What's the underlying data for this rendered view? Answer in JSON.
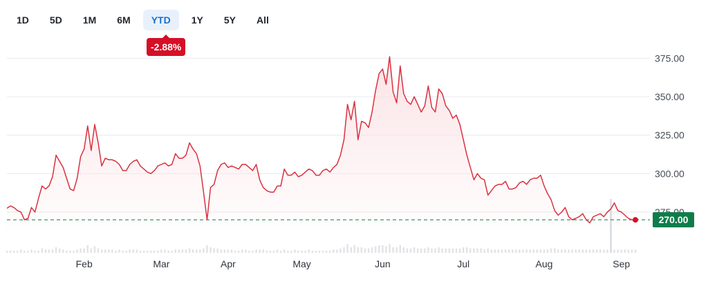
{
  "range_tabs": [
    {
      "label": "1D",
      "active": false
    },
    {
      "label": "5D",
      "active": false
    },
    {
      "label": "1M",
      "active": false
    },
    {
      "label": "6M",
      "active": false
    },
    {
      "label": "YTD",
      "active": true
    },
    {
      "label": "1Y",
      "active": false
    },
    {
      "label": "5Y",
      "active": false
    },
    {
      "label": "All",
      "active": false
    }
  ],
  "change_badge": "-2.88%",
  "colors": {
    "line": "#d8313f",
    "fill": "#fbe3e6",
    "baseline": "#1f8a5b",
    "price_tag": "#0f7d4a",
    "badge": "#d50f26",
    "active_tab": "#1a6fd1",
    "grid": "#e6e8eb",
    "volume": "#e1e3e6"
  },
  "chart_data": {
    "type": "line",
    "x_labels": [
      "Feb",
      "Mar",
      "Apr",
      "May",
      "Jun",
      "Jul",
      "Aug",
      "Sep"
    ],
    "y_ticks": [
      "275.00",
      "300.00",
      "325.00",
      "350.00",
      "375.00"
    ],
    "ylim": [
      262,
      385
    ],
    "current_price_label": "270.00",
    "baseline_value": 270,
    "series": [
      {
        "values": [
          277.5,
          279,
          278,
          276,
          275,
          270,
          271,
          278,
          275,
          284,
          292,
          290,
          292,
          298,
          312,
          308,
          304,
          297,
          290,
          289,
          297,
          311,
          316,
          331,
          315,
          332,
          320,
          305,
          310,
          309,
          309,
          308,
          306,
          302,
          302,
          306,
          308,
          309,
          305,
          303,
          301,
          300,
          302,
          305,
          306,
          307,
          305,
          306,
          313,
          310,
          310,
          312,
          320,
          316,
          313,
          305,
          288,
          270,
          291,
          293,
          302,
          306,
          307,
          304,
          305,
          304,
          303,
          306,
          306,
          304,
          302,
          306,
          296,
          291,
          289,
          288,
          288,
          292,
          292,
          303,
          299,
          299,
          301,
          298,
          299,
          301,
          303,
          302,
          299,
          299,
          302,
          303,
          301,
          304,
          306,
          312,
          322,
          345,
          335,
          347,
          322,
          334,
          333,
          330,
          340,
          354,
          365,
          368,
          358,
          376,
          353,
          346,
          370,
          352,
          347,
          345,
          350,
          345,
          340,
          344,
          357,
          343,
          340,
          355,
          352,
          344,
          341,
          336,
          338,
          332,
          322,
          312,
          304,
          296,
          300,
          297,
          296,
          286,
          289,
          292,
          293,
          293,
          295,
          290,
          290,
          291,
          294,
          295,
          293,
          296,
          297,
          297,
          299,
          292,
          287,
          283,
          276,
          273,
          275,
          278,
          272,
          270,
          271,
          272,
          274,
          270,
          268,
          272,
          273,
          274,
          272,
          275,
          277,
          281,
          276,
          275,
          273,
          271,
          270,
          270
        ],
        "volume": [
          2,
          2,
          2,
          2,
          3,
          2,
          2,
          3,
          2,
          2,
          4,
          3,
          3,
          3,
          5,
          4,
          3,
          2,
          2,
          2,
          3,
          4,
          4,
          7,
          4,
          6,
          4,
          3,
          3,
          3,
          3,
          2,
          3,
          2,
          2,
          3,
          3,
          3,
          2,
          2,
          2,
          2,
          2,
          2,
          3,
          3,
          2,
          2,
          3,
          3,
          3,
          3,
          4,
          3,
          3,
          3,
          4,
          7,
          5,
          4,
          4,
          3,
          3,
          3,
          3,
          2,
          2,
          3,
          3,
          2,
          2,
          3,
          3,
          3,
          2,
          2,
          2,
          3,
          2,
          3,
          2,
          2,
          3,
          2,
          2,
          2,
          3,
          2,
          2,
          2,
          2,
          2,
          2,
          3,
          3,
          4,
          5,
          8,
          5,
          7,
          5,
          5,
          4,
          4,
          5,
          6,
          7,
          7,
          6,
          8,
          5,
          5,
          7,
          5,
          4,
          4,
          5,
          4,
          4,
          4,
          5,
          4,
          4,
          5,
          4,
          4,
          4,
          4,
          4,
          4,
          5,
          5,
          4,
          4,
          4,
          4,
          3,
          4,
          3,
          3,
          3,
          3,
          3,
          3,
          3,
          3,
          3,
          3,
          3,
          3,
          3,
          3,
          3,
          3,
          3,
          4,
          4,
          3,
          3,
          3,
          3,
          3,
          3,
          3,
          3,
          3,
          3,
          3,
          3,
          3,
          3,
          3,
          3,
          3,
          3,
          3,
          3,
          3,
          3,
          3
        ]
      }
    ]
  }
}
